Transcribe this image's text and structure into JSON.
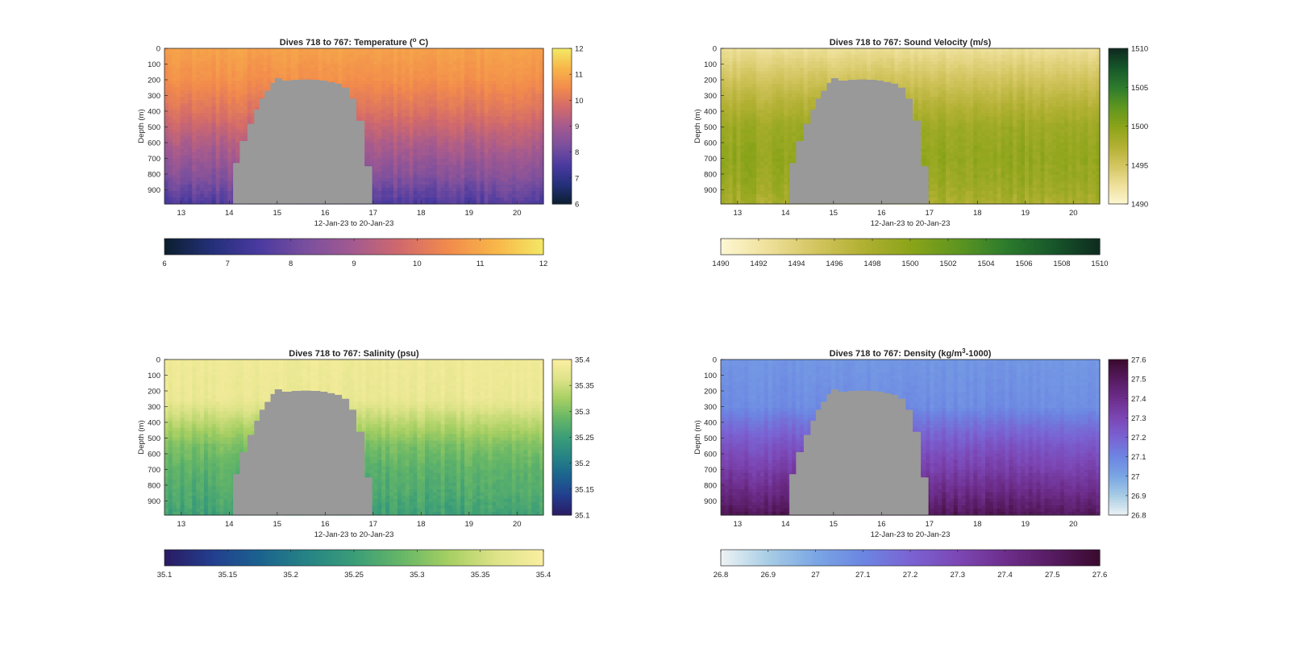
{
  "chart_data": [
    {
      "type": "heatmap",
      "id": "temperature",
      "title": "Dives 718 to 767: Temperature (",
      "title_sup": "o",
      "title_tail": " C)",
      "xlabel": "12-Jan-23 to 20-Jan-23",
      "ylabel": "Depth (m)",
      "xlim": [
        12.65,
        20.55
      ],
      "ylim": [
        0,
        990
      ],
      "x_ticks": [
        "13",
        "14",
        "15",
        "16",
        "17",
        "18",
        "19",
        "20"
      ],
      "y_ticks": [
        "0",
        "100",
        "200",
        "300",
        "400",
        "500",
        "600",
        "700",
        "800",
        "900"
      ],
      "clim": [
        6,
        12
      ],
      "colorbar_ticks": [
        "6",
        "7",
        "8",
        "9",
        "10",
        "11",
        "12"
      ],
      "colormap": [
        "#0b1e2e",
        "#24307a",
        "#4a3aa0",
        "#7a4f9e",
        "#a45a8f",
        "#d26a6b",
        "#f28b4c",
        "#f8b649",
        "#f3e865"
      ],
      "profile": [
        [
          0,
          10.9
        ],
        [
          200,
          10.6
        ],
        [
          400,
          10.0
        ],
        [
          600,
          9.2
        ],
        [
          800,
          8.5
        ],
        [
          990,
          7.6
        ]
      ],
      "seafloor": [
        [
          14.08,
          730
        ],
        [
          14.22,
          590
        ],
        [
          14.38,
          480
        ],
        [
          14.52,
          390
        ],
        [
          14.63,
          320
        ],
        [
          14.74,
          270
        ],
        [
          14.86,
          220
        ],
        [
          14.95,
          190
        ],
        [
          15.1,
          205
        ],
        [
          15.3,
          200
        ],
        [
          15.5,
          198
        ],
        [
          15.7,
          200
        ],
        [
          15.9,
          205
        ],
        [
          16.05,
          215
        ],
        [
          16.2,
          225
        ],
        [
          16.35,
          250
        ],
        [
          16.5,
          320
        ],
        [
          16.65,
          460
        ],
        [
          16.82,
          750
        ],
        [
          16.98,
          990
        ]
      ]
    },
    {
      "type": "heatmap",
      "id": "sound-velocity",
      "title": "Dives 718 to 767: Sound Velocity (m/s)",
      "xlabel": "12-Jan-23 to 20-Jan-23",
      "ylabel": "Depth (m)",
      "xlim": [
        12.65,
        20.55
      ],
      "ylim": [
        0,
        990
      ],
      "x_ticks": [
        "13",
        "14",
        "15",
        "16",
        "17",
        "18",
        "19",
        "20"
      ],
      "y_ticks": [
        "0",
        "100",
        "200",
        "300",
        "400",
        "500",
        "600",
        "700",
        "800",
        "900"
      ],
      "clim": [
        1490,
        1510
      ],
      "colorbar_ticks": [
        "1490",
        "1495",
        "1500",
        "1505",
        "1510"
      ],
      "colorbar_h_ticks": [
        "1490",
        "1492",
        "1494",
        "1496",
        "1498",
        "1500",
        "1502",
        "1504",
        "1506",
        "1508",
        "1510"
      ],
      "colormap": [
        "#fdf7d3",
        "#eee099",
        "#d3c560",
        "#b1b032",
        "#8ba419",
        "#5f9620",
        "#2d7c2d",
        "#17582a",
        "#0e2a1f"
      ],
      "profile": [
        [
          0,
          1492.5
        ],
        [
          150,
          1494.5
        ],
        [
          300,
          1496.5
        ],
        [
          500,
          1498.8
        ],
        [
          700,
          1499.5
        ],
        [
          850,
          1499.0
        ],
        [
          990,
          1498.0
        ]
      ],
      "seafloor": [
        [
          14.08,
          730
        ],
        [
          14.22,
          590
        ],
        [
          14.38,
          480
        ],
        [
          14.52,
          390
        ],
        [
          14.63,
          320
        ],
        [
          14.74,
          270
        ],
        [
          14.86,
          220
        ],
        [
          14.95,
          190
        ],
        [
          15.1,
          205
        ],
        [
          15.3,
          200
        ],
        [
          15.5,
          198
        ],
        [
          15.7,
          200
        ],
        [
          15.9,
          205
        ],
        [
          16.05,
          215
        ],
        [
          16.2,
          225
        ],
        [
          16.35,
          250
        ],
        [
          16.5,
          320
        ],
        [
          16.65,
          460
        ],
        [
          16.82,
          750
        ],
        [
          16.98,
          990
        ]
      ]
    },
    {
      "type": "heatmap",
      "id": "salinity",
      "title": "Dives 718 to 767: Salinity (psu)",
      "xlabel": "12-Jan-23 to 20-Jan-23",
      "ylabel": "Depth (m)",
      "xlim": [
        12.65,
        20.55
      ],
      "ylim": [
        0,
        990
      ],
      "x_ticks": [
        "13",
        "14",
        "15",
        "16",
        "17",
        "18",
        "19",
        "20"
      ],
      "y_ticks": [
        "0",
        "100",
        "200",
        "300",
        "400",
        "500",
        "600",
        "700",
        "800",
        "900"
      ],
      "clim": [
        35.1,
        35.4
      ],
      "colorbar_ticks": [
        "35.1",
        "35.15",
        "35.2",
        "35.25",
        "35.3",
        "35.35",
        "35.4"
      ],
      "colormap": [
        "#2a1b62",
        "#233d8e",
        "#1b628f",
        "#268385",
        "#3a9d78",
        "#66b667",
        "#a6cf62",
        "#dde388",
        "#fbeea1"
      ],
      "profile": [
        [
          0,
          35.385
        ],
        [
          250,
          35.38
        ],
        [
          400,
          35.34
        ],
        [
          550,
          35.3
        ],
        [
          700,
          35.28
        ],
        [
          850,
          35.27
        ],
        [
          990,
          35.255
        ]
      ],
      "seafloor": [
        [
          14.08,
          730
        ],
        [
          14.22,
          590
        ],
        [
          14.38,
          480
        ],
        [
          14.52,
          390
        ],
        [
          14.63,
          320
        ],
        [
          14.74,
          270
        ],
        [
          14.86,
          220
        ],
        [
          14.95,
          190
        ],
        [
          15.1,
          205
        ],
        [
          15.3,
          200
        ],
        [
          15.5,
          198
        ],
        [
          15.7,
          200
        ],
        [
          15.9,
          205
        ],
        [
          16.05,
          215
        ],
        [
          16.2,
          225
        ],
        [
          16.35,
          250
        ],
        [
          16.5,
          320
        ],
        [
          16.65,
          460
        ],
        [
          16.82,
          750
        ],
        [
          16.98,
          990
        ]
      ]
    },
    {
      "type": "heatmap",
      "id": "density",
      "title": "Dives 718 to 767: Density (kg/m",
      "title_sup": "3",
      "title_tail": "-1000)",
      "xlabel": "12-Jan-23 to 20-Jan-23",
      "ylabel": "Depth (m)",
      "xlim": [
        12.65,
        20.55
      ],
      "ylim": [
        0,
        990
      ],
      "x_ticks": [
        "13",
        "14",
        "15",
        "16",
        "17",
        "18",
        "19",
        "20"
      ],
      "y_ticks": [
        "0",
        "100",
        "200",
        "300",
        "400",
        "500",
        "600",
        "700",
        "800",
        "900"
      ],
      "clim": [
        26.8,
        27.6
      ],
      "colorbar_ticks": [
        "26.8",
        "26.9",
        "27",
        "27.1",
        "27.2",
        "27.3",
        "27.4",
        "27.5",
        "27.6"
      ],
      "colormap": [
        "#eef3f5",
        "#a8cde5",
        "#7aa6e4",
        "#6c86e2",
        "#7a63d3",
        "#7c47b5",
        "#6d2e8c",
        "#561b61",
        "#3a0a2e"
      ],
      "profile": [
        [
          0,
          27.05
        ],
        [
          300,
          27.08
        ],
        [
          400,
          27.15
        ],
        [
          550,
          27.25
        ],
        [
          700,
          27.33
        ],
        [
          850,
          27.42
        ],
        [
          990,
          27.52
        ]
      ],
      "seafloor": [
        [
          14.08,
          730
        ],
        [
          14.22,
          590
        ],
        [
          14.38,
          480
        ],
        [
          14.52,
          390
        ],
        [
          14.63,
          320
        ],
        [
          14.74,
          270
        ],
        [
          14.86,
          220
        ],
        [
          14.95,
          190
        ],
        [
          15.1,
          205
        ],
        [
          15.3,
          200
        ],
        [
          15.5,
          198
        ],
        [
          15.7,
          200
        ],
        [
          15.9,
          205
        ],
        [
          16.05,
          215
        ],
        [
          16.2,
          225
        ],
        [
          16.35,
          250
        ],
        [
          16.5,
          320
        ],
        [
          16.65,
          460
        ],
        [
          16.82,
          750
        ],
        [
          16.98,
          990
        ]
      ]
    }
  ],
  "seafloor_color": "#999999"
}
